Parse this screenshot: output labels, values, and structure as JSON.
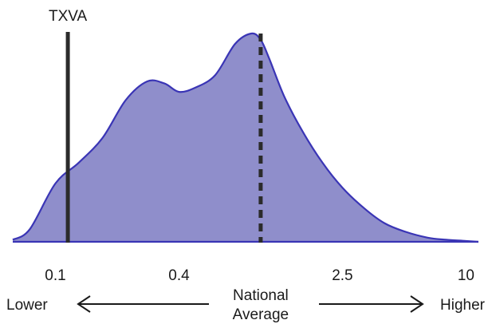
{
  "chart_data": {
    "type": "area",
    "scale": "log",
    "x_ticks": [
      {
        "value": 0.1,
        "label": "0.1"
      },
      {
        "value": 0.4,
        "label": "0.4"
      },
      {
        "value": 2.5,
        "label": "2.5"
      },
      {
        "value": 10,
        "label": "10"
      }
    ],
    "xlim": [
      0.062,
      11.5
    ],
    "density": {
      "x": [
        0.062,
        0.075,
        0.1,
        0.13,
        0.17,
        0.22,
        0.28,
        0.34,
        0.4,
        0.48,
        0.6,
        0.75,
        0.9,
        1.0,
        1.1,
        1.3,
        1.6,
        2.0,
        2.5,
        3.2,
        4.0,
        5.0,
        6.5,
        8.0,
        10,
        11.5
      ],
      "y": [
        0.01,
        0.06,
        0.28,
        0.38,
        0.5,
        0.68,
        0.77,
        0.76,
        0.72,
        0.74,
        0.8,
        0.95,
        1.0,
        0.97,
        0.88,
        0.7,
        0.53,
        0.38,
        0.26,
        0.16,
        0.09,
        0.05,
        0.02,
        0.01,
        0.004,
        0.0
      ]
    },
    "fill_color": "#8f8ecb",
    "line_color": "#3a35b5",
    "marker": {
      "label": "TXVA",
      "value": 0.115
    },
    "reference": {
      "value": 1.0,
      "style": "dashed"
    },
    "direction": {
      "left_label": "Lower",
      "right_label": "Higher",
      "center_line1": "National",
      "center_line2": "Average"
    }
  }
}
